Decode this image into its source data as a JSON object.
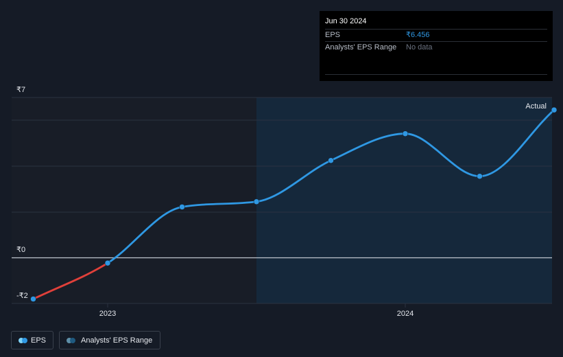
{
  "chart_data": {
    "type": "line",
    "title": "",
    "xlabel": "",
    "ylabel": "",
    "ylim": [
      -2,
      7
    ],
    "y_ticks": [
      {
        "value": 7,
        "label": "₹7"
      },
      {
        "value": 0,
        "label": "₹0"
      },
      {
        "value": -2,
        "label": "-₹2"
      }
    ],
    "x_ticks": [
      {
        "value": 2023.0,
        "label": "2023"
      },
      {
        "value": 2024.0,
        "label": "2024"
      }
    ],
    "xlim": [
      2022.68,
      2024.5
    ],
    "forecast_start": 2023.5,
    "series": [
      {
        "name": "EPS",
        "x": [
          2022.75,
          2023.0,
          2023.25,
          2023.5,
          2023.75,
          2024.0,
          2024.25,
          2024.5
        ],
        "values": [
          -1.8,
          -0.23,
          2.22,
          2.45,
          4.25,
          5.42,
          3.56,
          6.456
        ],
        "negative_color": "#e0403a",
        "color": "#2f98e3"
      }
    ],
    "annotations": [
      {
        "text": "Actual",
        "placement": "top-right"
      }
    ]
  },
  "tooltip": {
    "date": "Jun 30 2024",
    "rows": [
      {
        "label": "EPS",
        "value": "₹6.456"
      },
      {
        "label": "Analysts' EPS Range",
        "value": "No data"
      }
    ]
  },
  "legend": {
    "eps": {
      "label": "EPS",
      "dot_colors": [
        "#7fd3f7",
        "#2f98e3"
      ]
    },
    "range": {
      "label": "Analysts' EPS Range",
      "dot_colors": [
        "#5e8fa8",
        "#1f5a80"
      ]
    }
  },
  "colors": {
    "background": "#151b26",
    "past_region": "#181d27",
    "forecast_region": "#15283b",
    "grid": "#2a3240",
    "zero_line": "#bfc5ce"
  }
}
